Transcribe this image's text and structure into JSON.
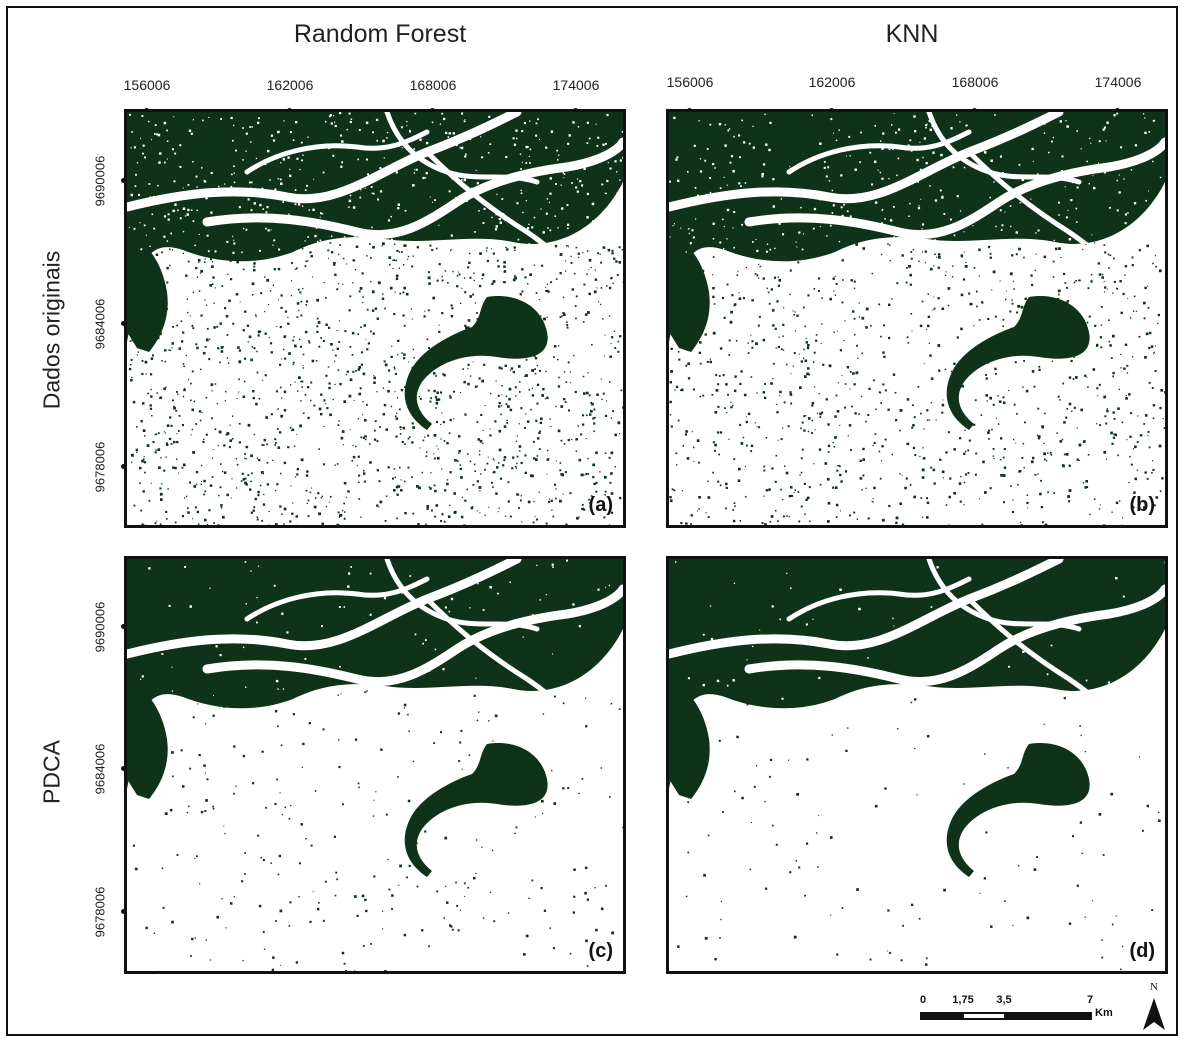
{
  "columns": [
    {
      "title": "Random Forest"
    },
    {
      "title": "KNN"
    }
  ],
  "rows": [
    {
      "title": "Dados originais"
    },
    {
      "title": "PDCA"
    }
  ],
  "x_ticks": [
    "156006",
    "162006",
    "168006",
    "174006"
  ],
  "y_ticks": [
    "9690006",
    "9684006",
    "9678006"
  ],
  "panels": [
    {
      "label": "(a)",
      "classifier": "Random Forest",
      "dataset": "Dados originais",
      "noise": "high"
    },
    {
      "label": "(b)",
      "classifier": "KNN",
      "dataset": "Dados originais",
      "noise": "medium"
    },
    {
      "label": "(c)",
      "classifier": "Random Forest",
      "dataset": "PDCA",
      "noise": "low"
    },
    {
      "label": "(d)",
      "classifier": "KNN",
      "dataset": "PDCA",
      "noise": "very-low"
    }
  ],
  "scale_bar": {
    "labels": [
      "0",
      "1,75",
      "3,5",
      "7"
    ],
    "unit": "Km"
  },
  "north_arrow": {
    "label": "N"
  },
  "colors": {
    "vegetation": "#0f3318",
    "background": "#ffffff",
    "frame": "#111111"
  }
}
